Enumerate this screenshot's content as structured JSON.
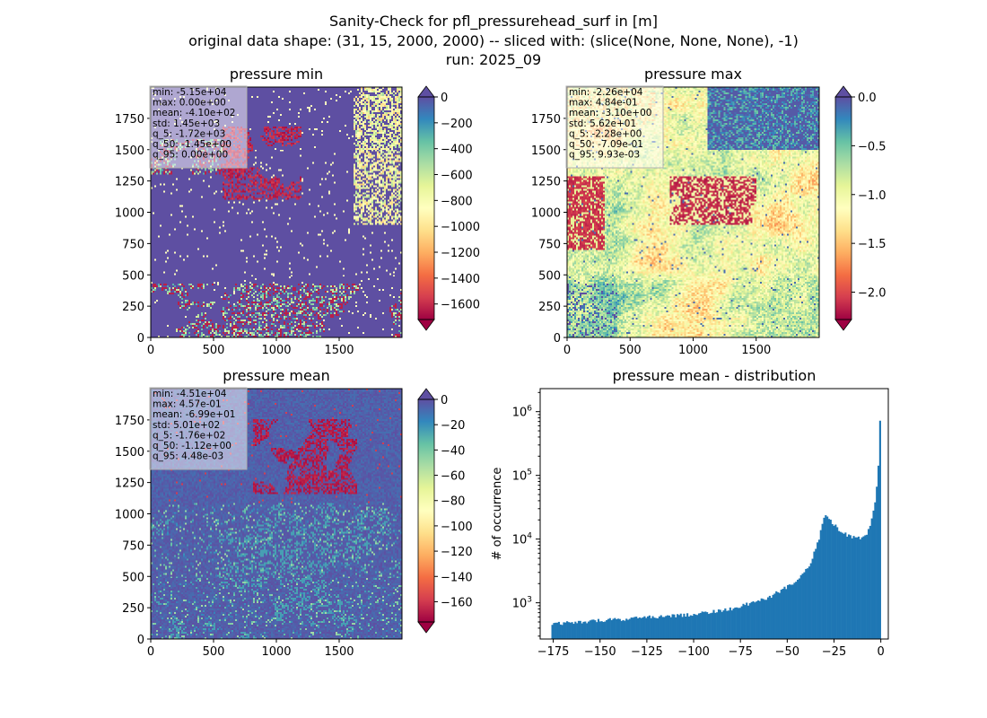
{
  "figure": {
    "title_lines": [
      "Sanity-Check for pfl_pressurehead_surf in [m]",
      "original data shape: (31, 15, 2000, 2000) -- sliced with: (slice(None, None, None), -1)",
      "run: 2025_09"
    ]
  },
  "chart_data": [
    {
      "type": "heatmap",
      "title": "pressure min",
      "colormap": "Spectral",
      "xlim": [
        0,
        2000
      ],
      "ylim": [
        0,
        2000
      ],
      "x_ticks": [
        0,
        500,
        1000,
        1500
      ],
      "y_ticks": [
        0,
        250,
        500,
        750,
        1000,
        1250,
        1500,
        1750
      ],
      "colorbar": {
        "range": [
          -1720,
          0
        ],
        "ticks": [
          0,
          -200,
          -400,
          -600,
          -800,
          -1000,
          -1200,
          -1400,
          -1600
        ],
        "tick_labels": [
          "0",
          "−200",
          "−400",
          "−600",
          "−800",
          "−1000",
          "−1200",
          "−1400",
          "−1600"
        ],
        "extend": "both"
      },
      "stats": [
        "min: -5.15e+04",
        "max: 0.00e+00",
        "mean: -4.10e+02",
        "std: 1.45e+03",
        "q_5: -1.72e+03",
        "q_50: -1.45e+00",
        "q_95: 0.00e+00"
      ],
      "texture": "min"
    },
    {
      "type": "heatmap",
      "title": "pressure max",
      "colormap": "Spectral",
      "xlim": [
        0,
        2000
      ],
      "ylim": [
        0,
        2000
      ],
      "x_ticks": [
        0,
        500,
        1000,
        1500
      ],
      "y_ticks": [
        0,
        250,
        500,
        750,
        1000,
        1250,
        1500,
        1750
      ],
      "colorbar": {
        "range": [
          -2.28,
          0
        ],
        "ticks": [
          0,
          -0.5,
          -1,
          -1.5,
          -2
        ],
        "tick_labels": [
          "0.0",
          "−0.5",
          "−1.0",
          "−1.5",
          "−2.0"
        ],
        "extend": "both"
      },
      "stats": [
        "min: -2.26e+04",
        "max: 4.84e-01",
        "mean: -3.10e+00",
        "std: 5.62e+01",
        "q_5: -2.28e+00",
        "q_50: -7.09e-01",
        "q_95: 9.93e-03"
      ],
      "texture": "max"
    },
    {
      "type": "heatmap",
      "title": "pressure mean",
      "colormap": "Spectral",
      "xlim": [
        0,
        2000
      ],
      "ylim": [
        0,
        2000
      ],
      "x_ticks": [
        0,
        500,
        1000,
        1500
      ],
      "y_ticks": [
        0,
        250,
        500,
        750,
        1000,
        1250,
        1500,
        1750
      ],
      "colorbar": {
        "range": [
          -176,
          0
        ],
        "ticks": [
          0,
          -20,
          -40,
          -60,
          -80,
          -100,
          -120,
          -140,
          -160
        ],
        "tick_labels": [
          "0",
          "−20",
          "−40",
          "−60",
          "−80",
          "−100",
          "−120",
          "−140",
          "−160"
        ],
        "extend": "both"
      },
      "stats": [
        "min: -4.51e+04",
        "max: 4.57e-01",
        "mean: -6.99e+01",
        "std: 5.01e+02",
        "q_5: -1.76e+02",
        "q_50: -1.12e+00",
        "q_95: 4.48e-03"
      ],
      "texture": "mean"
    },
    {
      "type": "bar",
      "title": "pressure mean - distribution",
      "ylabel": "# of occurrence",
      "xlabel": "",
      "yscale": "log",
      "color": "#1f77b4",
      "xlim": [
        -182,
        4
      ],
      "ylim": [
        270,
        2300000
      ],
      "x_ticks": [
        -175,
        -150,
        -125,
        -100,
        -75,
        -50,
        -25,
        0
      ],
      "x_tick_labels": [
        "−175",
        "−150",
        "−125",
        "−100",
        "−75",
        "−50",
        "−25",
        "0"
      ],
      "y_ticks": [
        1000,
        10000,
        100000,
        1000000
      ],
      "y_tick_labels": [
        [
          "10",
          "3"
        ],
        [
          "10",
          "4"
        ],
        [
          "10",
          "5"
        ],
        [
          "10",
          "6"
        ]
      ],
      "bin_range": [
        -176,
        0
      ],
      "bin_count": 200,
      "profile_x": [
        -176,
        -160,
        -140,
        -120,
        -100,
        -80,
        -60,
        -45,
        -38,
        -33,
        -30,
        -27,
        -24,
        -20,
        -15,
        -10,
        -7,
        -5,
        -3,
        -2,
        -1,
        -0.5,
        0
      ],
      "profile_y": [
        460,
        500,
        550,
        600,
        660,
        800,
        1200,
        2200,
        4000,
        10000,
        25000,
        20000,
        15500,
        12500,
        10500,
        10500,
        12500,
        20000,
        40000,
        70000,
        200000,
        650000,
        1500000
      ]
    }
  ]
}
